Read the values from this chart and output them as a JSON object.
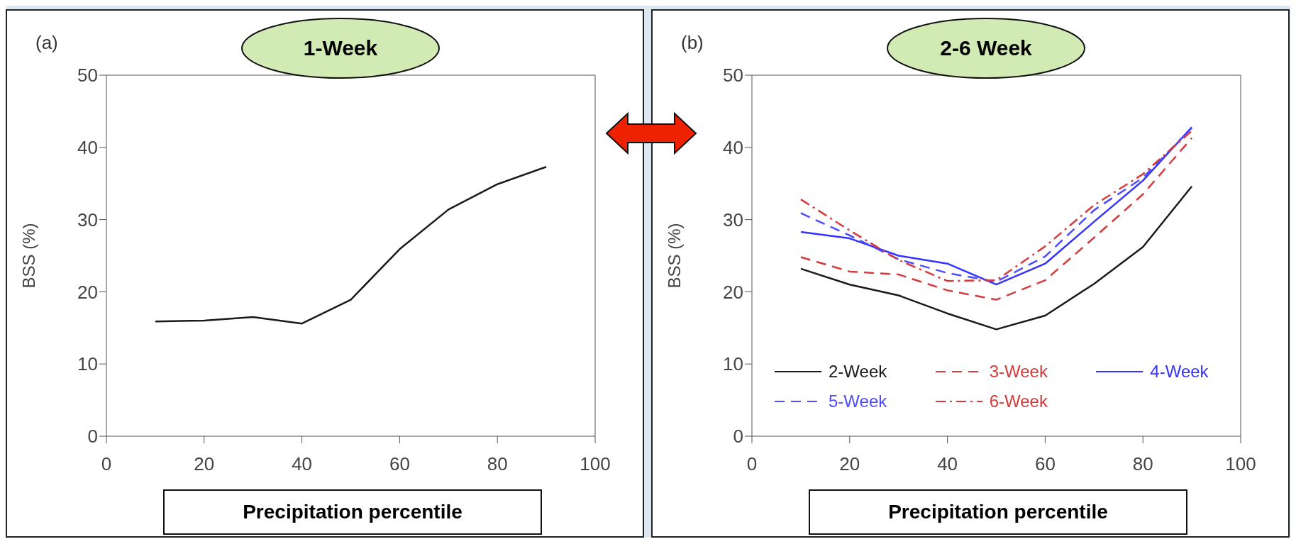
{
  "chart_data": [
    {
      "type": "line",
      "title": "1-Week",
      "annotations": [
        "(a)"
      ],
      "xlabel": "Precipitation percentile",
      "ylabel": "BSS (%)",
      "x": [
        10,
        20,
        30,
        40,
        50,
        60,
        70,
        80,
        90
      ],
      "values": [
        15.9,
        16.0,
        16.5,
        15.6,
        18.9,
        25.9,
        31.4,
        34.9,
        37.3
      ],
      "color": "#1a1a1a",
      "xlim": [
        0,
        100
      ],
      "xticks": [
        0,
        20,
        40,
        60,
        80,
        100
      ],
      "ylim": [
        0,
        50
      ],
      "yticks": [
        0,
        10,
        20,
        30,
        40,
        50
      ],
      "grid": false,
      "legend": false,
      "marker": "none",
      "line_style": "solid"
    },
    {
      "type": "line",
      "title": "2-6 Week",
      "annotations": [
        "(b)"
      ],
      "xlabel": "Precipitation percentile",
      "ylabel": "BSS (%)",
      "x": [
        10,
        20,
        30,
        40,
        50,
        60,
        70,
        80,
        90
      ],
      "series": [
        {
          "name": "2-Week",
          "color": "#1a1a1a",
          "line_style": "solid",
          "values": [
            23.2,
            21.0,
            19.5,
            17.0,
            14.8,
            16.7,
            21.1,
            26.2,
            34.6
          ]
        },
        {
          "name": "3-Week",
          "color": "#d63a3a",
          "line_style": "dashed",
          "values": [
            24.8,
            22.8,
            22.4,
            20.2,
            18.9,
            21.6,
            27.5,
            33.5,
            41.3
          ]
        },
        {
          "name": "4-Week",
          "color": "#3333ff",
          "line_style": "solid",
          "values": [
            28.3,
            27.4,
            25.0,
            23.9,
            21.0,
            23.9,
            29.7,
            35.4,
            42.8
          ]
        },
        {
          "name": "5-Week",
          "color": "#4d4dff",
          "line_style": "dashed",
          "values": [
            30.9,
            27.8,
            24.5,
            22.6,
            21.4,
            24.9,
            31.3,
            35.8,
            42.7
          ]
        },
        {
          "name": "6-Week",
          "color": "#d63a3a",
          "line_style": "dashdot",
          "values": [
            32.8,
            28.5,
            24.4,
            21.5,
            21.6,
            26.3,
            32.0,
            36.3,
            42.3
          ]
        }
      ],
      "xlim": [
        0,
        100
      ],
      "xticks": [
        0,
        20,
        40,
        60,
        80,
        100
      ],
      "ylim": [
        0,
        50
      ],
      "yticks": [
        0,
        10,
        20,
        30,
        40,
        50
      ],
      "grid": false,
      "legend": "bottom",
      "marker": "none"
    }
  ]
}
